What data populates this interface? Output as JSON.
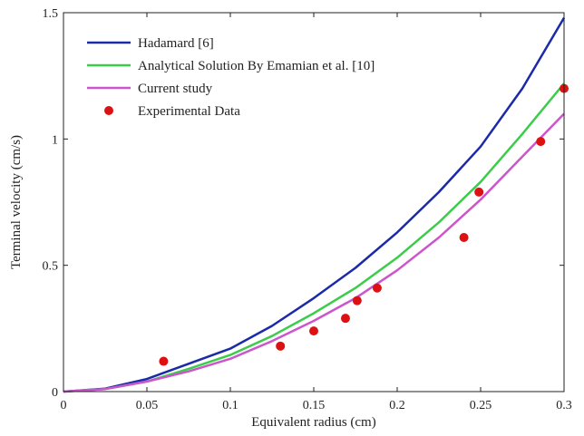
{
  "chart_data": {
    "type": "line",
    "title": "",
    "xlabel": "Equivalent radius (cm)",
    "ylabel": "Terminal velocity (cm/s)",
    "xlim": [
      0,
      0.3
    ],
    "ylim": [
      0,
      1.5
    ],
    "xticks": [
      0,
      0.05,
      0.1,
      0.15,
      0.2,
      0.25,
      0.3
    ],
    "xtick_labels": [
      "0",
      "0.05",
      "0.1",
      "0.15",
      "0.2",
      "0.25",
      "0.3"
    ],
    "yticks": [
      0,
      0.5,
      1,
      1.5
    ],
    "ytick_labels": [
      "0",
      "0.5",
      "1",
      "1.5"
    ],
    "grid": false,
    "legend_position": "top-left",
    "x": [
      0,
      0.025,
      0.05,
      0.075,
      0.1,
      0.125,
      0.15,
      0.175,
      0.2,
      0.225,
      0.25,
      0.275,
      0.3
    ],
    "series": [
      {
        "name": "Hadamard [6]",
        "kind": "line",
        "color": "#1a2aa8",
        "values": [
          0,
          0.012,
          0.05,
          0.11,
          0.17,
          0.26,
          0.37,
          0.49,
          0.63,
          0.79,
          0.97,
          1.2,
          1.48
        ]
      },
      {
        "name": "Analytical Solution By Emamian et al. [10]",
        "kind": "line",
        "color": "#3ccc4a",
        "values": [
          0,
          0.01,
          0.04,
          0.09,
          0.145,
          0.22,
          0.31,
          0.41,
          0.53,
          0.67,
          0.83,
          1.02,
          1.22
        ]
      },
      {
        "name": "Current study",
        "kind": "line",
        "color": "#cc55cc",
        "values": [
          0,
          0.01,
          0.04,
          0.08,
          0.13,
          0.2,
          0.28,
          0.37,
          0.48,
          0.61,
          0.76,
          0.93,
          1.1
        ]
      },
      {
        "name": "Experimental Data",
        "kind": "scatter",
        "color": "#dd1111",
        "points": [
          [
            0.06,
            0.12
          ],
          [
            0.13,
            0.18
          ],
          [
            0.15,
            0.24
          ],
          [
            0.169,
            0.29
          ],
          [
            0.176,
            0.36
          ],
          [
            0.188,
            0.41
          ],
          [
            0.24,
            0.61
          ],
          [
            0.249,
            0.79
          ],
          [
            0.286,
            0.99
          ],
          [
            0.3,
            1.2
          ]
        ]
      }
    ]
  }
}
